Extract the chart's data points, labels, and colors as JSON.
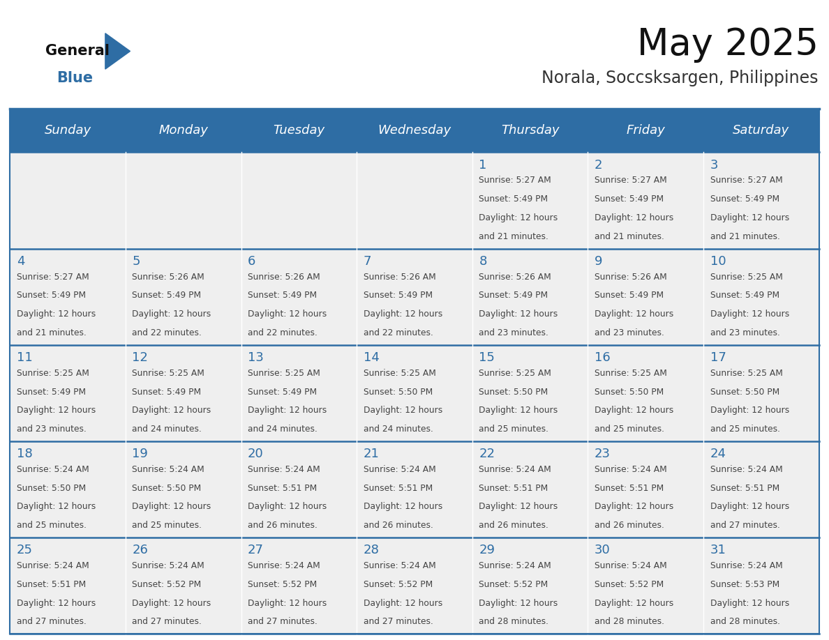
{
  "title": "May 2025",
  "subtitle": "Norala, Soccsksargen, Philippines",
  "header_bg": "#2E6DA4",
  "header_fg": "#FFFFFF",
  "cell_bg_light": "#EFEFEF",
  "text_color": "#444444",
  "day_number_color": "#2E6DA4",
  "days_of_week": [
    "Sunday",
    "Monday",
    "Tuesday",
    "Wednesday",
    "Thursday",
    "Friday",
    "Saturday"
  ],
  "calendar_data": [
    [
      null,
      null,
      null,
      null,
      {
        "day": 1,
        "sunrise": "5:27 AM",
        "sunset": "5:49 PM",
        "daylight1": "Daylight: 12 hours",
        "daylight2": "and 21 minutes."
      },
      {
        "day": 2,
        "sunrise": "5:27 AM",
        "sunset": "5:49 PM",
        "daylight1": "Daylight: 12 hours",
        "daylight2": "and 21 minutes."
      },
      {
        "day": 3,
        "sunrise": "5:27 AM",
        "sunset": "5:49 PM",
        "daylight1": "Daylight: 12 hours",
        "daylight2": "and 21 minutes."
      }
    ],
    [
      {
        "day": 4,
        "sunrise": "5:27 AM",
        "sunset": "5:49 PM",
        "daylight1": "Daylight: 12 hours",
        "daylight2": "and 21 minutes."
      },
      {
        "day": 5,
        "sunrise": "5:26 AM",
        "sunset": "5:49 PM",
        "daylight1": "Daylight: 12 hours",
        "daylight2": "and 22 minutes."
      },
      {
        "day": 6,
        "sunrise": "5:26 AM",
        "sunset": "5:49 PM",
        "daylight1": "Daylight: 12 hours",
        "daylight2": "and 22 minutes."
      },
      {
        "day": 7,
        "sunrise": "5:26 AM",
        "sunset": "5:49 PM",
        "daylight1": "Daylight: 12 hours",
        "daylight2": "and 22 minutes."
      },
      {
        "day": 8,
        "sunrise": "5:26 AM",
        "sunset": "5:49 PM",
        "daylight1": "Daylight: 12 hours",
        "daylight2": "and 23 minutes."
      },
      {
        "day": 9,
        "sunrise": "5:26 AM",
        "sunset": "5:49 PM",
        "daylight1": "Daylight: 12 hours",
        "daylight2": "and 23 minutes."
      },
      {
        "day": 10,
        "sunrise": "5:25 AM",
        "sunset": "5:49 PM",
        "daylight1": "Daylight: 12 hours",
        "daylight2": "and 23 minutes."
      }
    ],
    [
      {
        "day": 11,
        "sunrise": "5:25 AM",
        "sunset": "5:49 PM",
        "daylight1": "Daylight: 12 hours",
        "daylight2": "and 23 minutes."
      },
      {
        "day": 12,
        "sunrise": "5:25 AM",
        "sunset": "5:49 PM",
        "daylight1": "Daylight: 12 hours",
        "daylight2": "and 24 minutes."
      },
      {
        "day": 13,
        "sunrise": "5:25 AM",
        "sunset": "5:49 PM",
        "daylight1": "Daylight: 12 hours",
        "daylight2": "and 24 minutes."
      },
      {
        "day": 14,
        "sunrise": "5:25 AM",
        "sunset": "5:50 PM",
        "daylight1": "Daylight: 12 hours",
        "daylight2": "and 24 minutes."
      },
      {
        "day": 15,
        "sunrise": "5:25 AM",
        "sunset": "5:50 PM",
        "daylight1": "Daylight: 12 hours",
        "daylight2": "and 25 minutes."
      },
      {
        "day": 16,
        "sunrise": "5:25 AM",
        "sunset": "5:50 PM",
        "daylight1": "Daylight: 12 hours",
        "daylight2": "and 25 minutes."
      },
      {
        "day": 17,
        "sunrise": "5:25 AM",
        "sunset": "5:50 PM",
        "daylight1": "Daylight: 12 hours",
        "daylight2": "and 25 minutes."
      }
    ],
    [
      {
        "day": 18,
        "sunrise": "5:24 AM",
        "sunset": "5:50 PM",
        "daylight1": "Daylight: 12 hours",
        "daylight2": "and 25 minutes."
      },
      {
        "day": 19,
        "sunrise": "5:24 AM",
        "sunset": "5:50 PM",
        "daylight1": "Daylight: 12 hours",
        "daylight2": "and 25 minutes."
      },
      {
        "day": 20,
        "sunrise": "5:24 AM",
        "sunset": "5:51 PM",
        "daylight1": "Daylight: 12 hours",
        "daylight2": "and 26 minutes."
      },
      {
        "day": 21,
        "sunrise": "5:24 AM",
        "sunset": "5:51 PM",
        "daylight1": "Daylight: 12 hours",
        "daylight2": "and 26 minutes."
      },
      {
        "day": 22,
        "sunrise": "5:24 AM",
        "sunset": "5:51 PM",
        "daylight1": "Daylight: 12 hours",
        "daylight2": "and 26 minutes."
      },
      {
        "day": 23,
        "sunrise": "5:24 AM",
        "sunset": "5:51 PM",
        "daylight1": "Daylight: 12 hours",
        "daylight2": "and 26 minutes."
      },
      {
        "day": 24,
        "sunrise": "5:24 AM",
        "sunset": "5:51 PM",
        "daylight1": "Daylight: 12 hours",
        "daylight2": "and 27 minutes."
      }
    ],
    [
      {
        "day": 25,
        "sunrise": "5:24 AM",
        "sunset": "5:51 PM",
        "daylight1": "Daylight: 12 hours",
        "daylight2": "and 27 minutes."
      },
      {
        "day": 26,
        "sunrise": "5:24 AM",
        "sunset": "5:52 PM",
        "daylight1": "Daylight: 12 hours",
        "daylight2": "and 27 minutes."
      },
      {
        "day": 27,
        "sunrise": "5:24 AM",
        "sunset": "5:52 PM",
        "daylight1": "Daylight: 12 hours",
        "daylight2": "and 27 minutes."
      },
      {
        "day": 28,
        "sunrise": "5:24 AM",
        "sunset": "5:52 PM",
        "daylight1": "Daylight: 12 hours",
        "daylight2": "and 27 minutes."
      },
      {
        "day": 29,
        "sunrise": "5:24 AM",
        "sunset": "5:52 PM",
        "daylight1": "Daylight: 12 hours",
        "daylight2": "and 28 minutes."
      },
      {
        "day": 30,
        "sunrise": "5:24 AM",
        "sunset": "5:52 PM",
        "daylight1": "Daylight: 12 hours",
        "daylight2": "and 28 minutes."
      },
      {
        "day": 31,
        "sunrise": "5:24 AM",
        "sunset": "5:53 PM",
        "daylight1": "Daylight: 12 hours",
        "daylight2": "and 28 minutes."
      }
    ]
  ]
}
